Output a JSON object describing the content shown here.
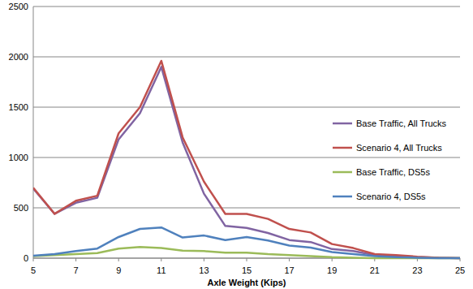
{
  "chart_data": {
    "type": "line",
    "x_label": "Axle Weight (Kips)",
    "x": [
      5,
      6,
      7,
      8,
      9,
      10,
      11,
      12,
      13,
      14,
      15,
      16,
      17,
      18,
      19,
      20,
      21,
      22,
      23,
      24,
      25
    ],
    "series": [
      {
        "name": "Base Traffic, All Trucks",
        "color": "#8064a2",
        "values": [
          690,
          440,
          550,
          600,
          1180,
          1440,
          1900,
          1150,
          640,
          320,
          300,
          250,
          180,
          160,
          90,
          70,
          30,
          20,
          10,
          5,
          0
        ]
      },
      {
        "name": "Scenario 4, All Trucks",
        "color": "#c0504d",
        "values": [
          700,
          440,
          570,
          620,
          1240,
          1500,
          1960,
          1200,
          760,
          440,
          440,
          390,
          290,
          255,
          140,
          100,
          40,
          30,
          15,
          5,
          0
        ]
      },
      {
        "name": "Base Traffic, DS5s",
        "color": "#9bbb59",
        "values": [
          20,
          30,
          40,
          50,
          95,
          110,
          100,
          75,
          70,
          55,
          55,
          40,
          30,
          20,
          10,
          5,
          0,
          0,
          0,
          0,
          0
        ]
      },
      {
        "name": "Scenario 4, DS5s",
        "color": "#4f81bd",
        "values": [
          25,
          40,
          70,
          95,
          210,
          290,
          305,
          205,
          225,
          180,
          210,
          175,
          125,
          105,
          60,
          40,
          20,
          10,
          5,
          0,
          0
        ]
      }
    ],
    "xlim": [
      5,
      25
    ],
    "xticks": [
      5,
      7,
      9,
      11,
      13,
      15,
      17,
      19,
      21,
      23,
      25
    ],
    "ylim": [
      0,
      2500
    ],
    "yticks": [
      0,
      500,
      1000,
      1500,
      2000,
      2500
    ],
    "grid": true,
    "legend": "right"
  }
}
